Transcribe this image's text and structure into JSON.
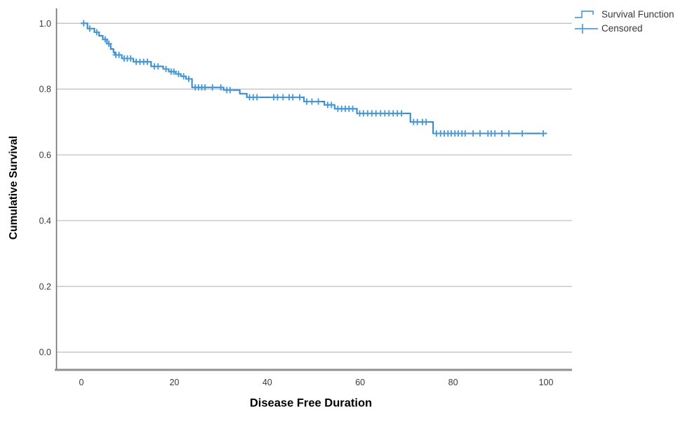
{
  "colors": {
    "curve": "#2b86d9",
    "censor": "#3f98e3",
    "grid": "#c3c3c3",
    "axis_y": "#6e6e6e",
    "axis_x": "#8f9193",
    "tick_text": "#3a3a3a",
    "legend_text": "#383838"
  },
  "y_axis": {
    "title": "Cumulative Survival",
    "ticks": [
      "1.0",
      "0.8",
      "0.6",
      "0.4",
      "0.2",
      "0.0"
    ]
  },
  "x_axis": {
    "title": "Disease Free Duration",
    "ticks": [
      "0",
      "20",
      "40",
      "60",
      "80",
      "100"
    ]
  },
  "legend": {
    "items": [
      {
        "label": "Survival Function",
        "icon": "step-line-icon"
      },
      {
        "label": "Censored",
        "icon": "plus-marker-icon"
      }
    ]
  },
  "chart_data": {
    "type": "line",
    "subtype": "kaplan-meier-step",
    "title": "",
    "xlabel": "Disease Free Duration",
    "ylabel": "Cumulative Survival",
    "xlim": [
      -5.5,
      105.5
    ],
    "ylim": [
      0.0,
      1.05
    ],
    "xticks": [
      0,
      20,
      40,
      60,
      80,
      100
    ],
    "yticks": [
      1.0,
      0.8,
      0.6,
      0.4,
      0.2,
      0.0
    ],
    "grid": "horizontal-only",
    "legend_position": "top-right",
    "series": [
      {
        "name": "Survival Function",
        "style": "step-post",
        "points": [
          [
            0,
            1.0
          ],
          [
            1.3,
            0.984
          ],
          [
            2.8,
            0.973
          ],
          [
            3.8,
            0.962
          ],
          [
            4.6,
            0.951
          ],
          [
            5.5,
            0.938
          ],
          [
            6.3,
            0.922
          ],
          [
            6.9,
            0.912
          ],
          [
            7.2,
            0.904
          ],
          [
            8.7,
            0.893
          ],
          [
            11.2,
            0.883
          ],
          [
            15.0,
            0.869
          ],
          [
            17.6,
            0.861
          ],
          [
            18.8,
            0.853
          ],
          [
            20.3,
            0.846
          ],
          [
            21.4,
            0.839
          ],
          [
            22.5,
            0.831
          ],
          [
            23.8,
            0.805
          ],
          [
            30.6,
            0.797
          ],
          [
            34.1,
            0.786
          ],
          [
            35.6,
            0.775
          ],
          [
            47.9,
            0.762
          ],
          [
            52.3,
            0.752
          ],
          [
            54.5,
            0.74
          ],
          [
            59.3,
            0.726
          ],
          [
            70.8,
            0.7
          ],
          [
            75.7,
            0.665
          ]
        ],
        "end_time": 100.2,
        "final_value": 0.665
      }
    ],
    "censored_times": [
      0.5,
      1.8,
      3.3,
      5.1,
      5.9,
      7.4,
      8.1,
      9.2,
      9.9,
      10.6,
      11.8,
      12.6,
      13.4,
      14.2,
      15.7,
      16.5,
      18.2,
      19.3,
      19.9,
      20.9,
      22.0,
      23.1,
      24.5,
      25.2,
      25.9,
      26.6,
      28.2,
      30.0,
      31.3,
      32.0,
      36.2,
      37.0,
      37.8,
      41.4,
      42.2,
      43.4,
      44.7,
      45.5,
      47.0,
      48.5,
      49.6,
      51.0,
      53.0,
      53.8,
      55.2,
      56.0,
      56.8,
      57.6,
      58.4,
      59.9,
      60.7,
      61.6,
      62.5,
      63.4,
      64.4,
      65.3,
      66.2,
      67.1,
      68.0,
      68.9,
      71.5,
      72.3,
      73.4,
      74.2,
      76.4,
      77.3,
      78.1,
      78.9,
      79.6,
      80.4,
      81.1,
      81.9,
      82.6,
      84.3,
      85.8,
      87.5,
      88.2,
      89.0,
      90.5,
      92.0,
      94.9,
      99.4
    ]
  }
}
